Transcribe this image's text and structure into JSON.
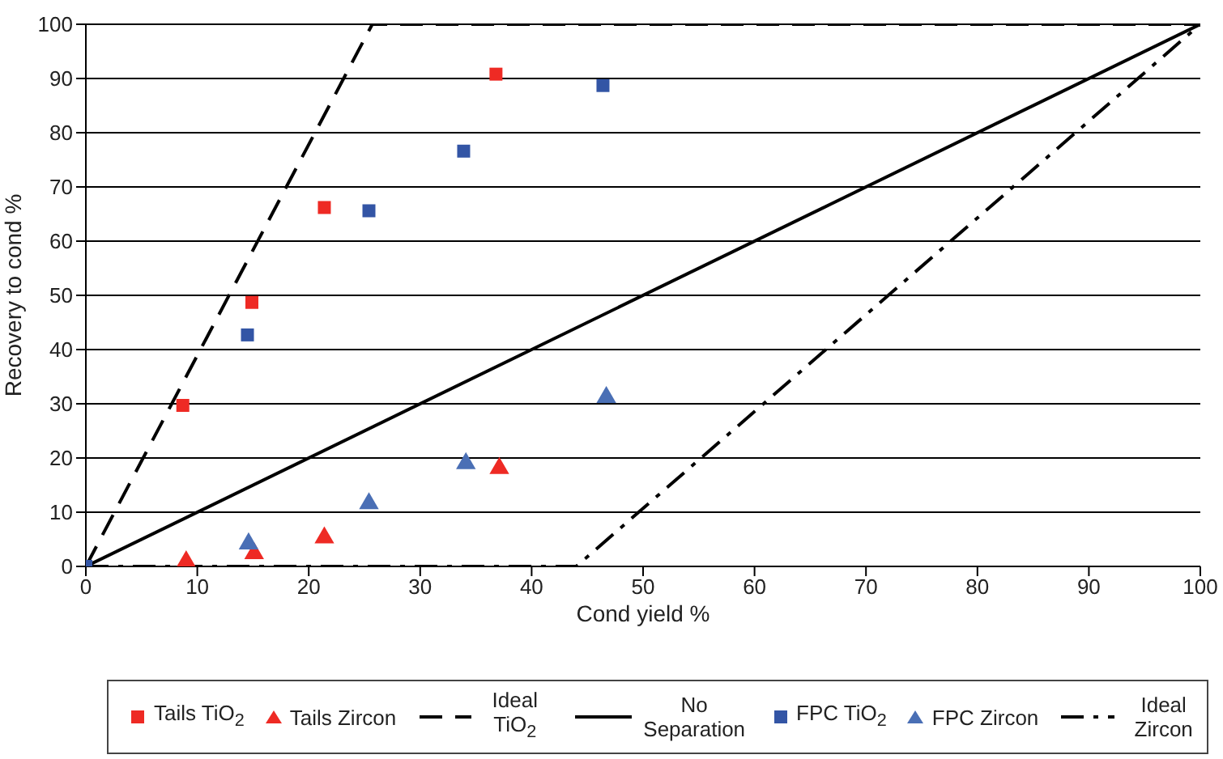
{
  "chart_data": {
    "type": "scatter",
    "xlabel": "Cond yield %",
    "ylabel": "Recovery to cond %",
    "xlim": [
      0,
      100
    ],
    "ylim": [
      0,
      100
    ],
    "xticks": [
      0,
      10,
      20,
      30,
      40,
      50,
      60,
      70,
      80,
      90,
      100
    ],
    "yticks": [
      0,
      10,
      20,
      30,
      40,
      50,
      60,
      70,
      80,
      90,
      100
    ],
    "grid": "y",
    "legend": "bottom",
    "series": [
      {
        "name": "Tails TiO$_{2}$",
        "marker": "square",
        "color": "#ee2a24",
        "x": [
          8.7,
          14.9,
          21.4,
          36.8
        ],
        "values": [
          29.7,
          48.7,
          66.2,
          90.8
        ]
      },
      {
        "name": "Tails Zircon",
        "marker": "triangle",
        "color": "#ee2a24",
        "x": [
          9.0,
          15.1,
          21.4,
          37.1
        ],
        "values": [
          0.9,
          2.4,
          5.3,
          18.1
        ]
      },
      {
        "name": "Ideal TiO$_{2}$",
        "type": "line",
        "line_style": "dashed",
        "marker": "none",
        "color": "#000000",
        "x": [
          0,
          25.7,
          100
        ],
        "values": [
          0,
          100,
          100
        ]
      },
      {
        "name": "No Separation",
        "type": "line",
        "line_style": "solid",
        "marker": "none",
        "color": "#000000",
        "x": [
          0,
          100
        ],
        "values": [
          0,
          100
        ]
      },
      {
        "name": "FPC TiO$_{2}$",
        "marker": "square",
        "color": "#3355a5",
        "x": [
          0,
          14.5,
          25.4,
          33.9,
          46.4
        ],
        "values": [
          0,
          42.7,
          65.6,
          76.6,
          88.7
        ]
      },
      {
        "name": "FPC Zircon",
        "marker": "triangle",
        "color": "#4a6fb5",
        "x": [
          14.6,
          25.4,
          34.1,
          46.7
        ],
        "values": [
          4.2,
          11.6,
          19.0,
          31.2
        ]
      },
      {
        "name": "Ideal Zircon",
        "type": "line",
        "line_style": "dashdot",
        "marker": "none",
        "color": "#000000",
        "x": [
          0,
          44,
          100
        ],
        "values": [
          0,
          0,
          100
        ]
      }
    ]
  }
}
